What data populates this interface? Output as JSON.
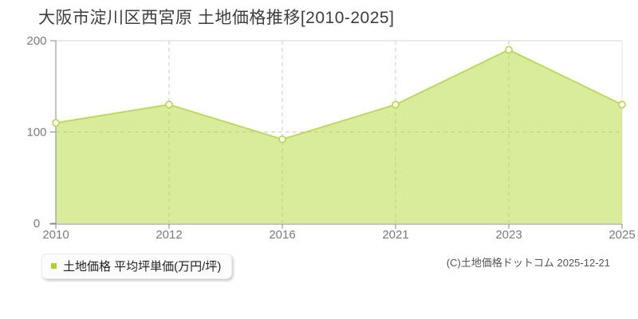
{
  "title": "大阪市淀川区西宮原 土地価格推移[2010-2025]",
  "legend": {
    "label": "土地価格 平均坪単価(万円/坪)",
    "marker_color": "#a9d326"
  },
  "copyright": "(C)土地価格ドットコム 2025-12-21",
  "chart_data": {
    "type": "area",
    "categories": [
      "2010",
      "2012",
      "2016",
      "2021",
      "2023",
      "2025"
    ],
    "series": [
      {
        "name": "土地価格 平均坪単価(万円/坪)",
        "values": [
          110,
          130,
          92,
          130,
          190,
          130
        ]
      }
    ],
    "title": "大阪市淀川区西宮原 土地価格推移[2010-2025]",
    "xlabel": "",
    "ylabel": "",
    "ylim": [
      0,
      200
    ],
    "yticks": [
      0,
      100,
      200
    ],
    "grid": "dashed",
    "legend_position": "bottom-left",
    "colors": {
      "line": "#bcd95e",
      "fill": "#b1d939",
      "fill_opacity": 0.5,
      "marker_fill": "#ffffff",
      "marker_stroke": "#b4d649",
      "grid": "#cbcbcb",
      "border": "#e4e4e4",
      "axis": "#8a8a8a",
      "tick_label": "#7a7a7a"
    }
  }
}
